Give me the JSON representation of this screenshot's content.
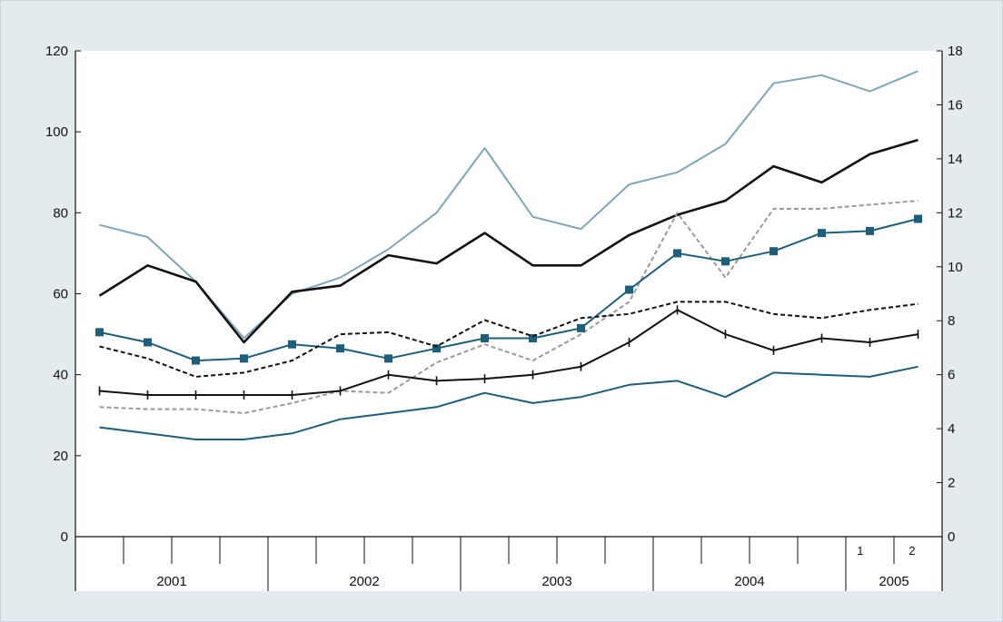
{
  "colors": {
    "background": "#e4ebef",
    "plot_area": "#ffffff",
    "teal": "#1d5f7a",
    "light_blue": "#7fa6b8",
    "black": "#111111",
    "grey_dashed": "#9a9a9a"
  },
  "chart_data": {
    "type": "line",
    "x_axis": {
      "years": [
        "2001",
        "2002",
        "2003",
        "2004",
        "2005"
      ],
      "quarter_marks_2005": [
        "1",
        "2"
      ],
      "x": [
        "2001Q1",
        "2001Q2",
        "2001Q3",
        "2001Q4",
        "2002Q1",
        "2002Q2",
        "2002Q3",
        "2002Q4",
        "2003Q1",
        "2003Q2",
        "2003Q3",
        "2003Q4",
        "2004Q1",
        "2004Q2",
        "2004Q3",
        "2004Q4",
        "2005M1",
        "2005M2"
      ]
    },
    "y_left": {
      "ticks": [
        "0",
        "20",
        "40",
        "60",
        "80",
        "100",
        "120"
      ],
      "ylim": [
        0,
        120
      ]
    },
    "y_right": {
      "ticks": [
        "0",
        "2",
        "4",
        "6",
        "8",
        "10",
        "12",
        "14",
        "16",
        "18"
      ],
      "ylim": [
        0,
        18
      ]
    },
    "grid": false,
    "legend": "none",
    "series": [
      {
        "axis": "left",
        "style": "light-blue-solid",
        "color": "#7fa6b8",
        "x": [
          0.5,
          1.5,
          2.5,
          3.5,
          4.5,
          5.5,
          6.5,
          7.5,
          8.5,
          9.5,
          10.5,
          11.5,
          12.5,
          13.5,
          14.5,
          15.5,
          16.5,
          17.5
        ],
        "values": [
          77,
          74,
          63,
          49,
          60,
          64,
          71,
          80,
          96,
          79,
          76,
          87,
          90,
          97,
          112,
          114,
          110,
          115
        ]
      },
      {
        "axis": "left",
        "style": "black-solid",
        "color": "#111111",
        "x": [
          0.5,
          1.5,
          2.5,
          3.5,
          4.5,
          5.5,
          6.5,
          7.5,
          8.5,
          9.5,
          10.5,
          11.5,
          12.5,
          13.5,
          14.5,
          15.5,
          16.5,
          17.5
        ],
        "values": [
          59.5,
          67,
          63,
          48,
          60.5,
          62,
          69.5,
          67.5,
          75,
          67,
          67,
          74.5,
          79.5,
          83,
          91.5,
          87.5,
          94.5,
          98
        ]
      },
      {
        "axis": "left",
        "style": "grey-dashed",
        "color": "#9a9a9a",
        "x": [
          0.5,
          1.5,
          2.5,
          3.5,
          4.5,
          5.5,
          6.5,
          7.5,
          8.5,
          9.5,
          10.5,
          11.5,
          12.5,
          13.5,
          14.5,
          15.5,
          16.5,
          17.5
        ],
        "values": [
          32,
          31.5,
          31.5,
          30.5,
          33,
          36,
          35.5,
          43,
          47.5,
          43.5,
          50,
          58,
          80,
          64,
          81,
          81,
          82,
          83
        ]
      },
      {
        "axis": "left",
        "style": "teal-square-markers",
        "color": "#1d5f7a",
        "x": [
          0.5,
          1.5,
          2.5,
          3.5,
          4.5,
          5.5,
          6.5,
          7.5,
          8.5,
          9.5,
          10.5,
          11.5,
          12.5,
          13.5,
          14.5,
          15.5,
          16.5,
          17.5
        ],
        "values": [
          50.5,
          48,
          43.5,
          44,
          47.5,
          46.5,
          44,
          46.5,
          49,
          49,
          51.5,
          61,
          70,
          68,
          70.5,
          75,
          75.5,
          78.5
        ]
      },
      {
        "axis": "left",
        "style": "black-dashed",
        "color": "#111111",
        "x": [
          0.5,
          1.5,
          2.5,
          3.5,
          4.5,
          5.5,
          6.5,
          7.5,
          8.5,
          9.5,
          10.5,
          11.5,
          12.5,
          13.5,
          14.5,
          15.5,
          16.5,
          17.5
        ],
        "values": [
          47,
          44,
          39.5,
          40.5,
          43.5,
          50,
          50.5,
          47,
          53.5,
          49.5,
          54,
          55,
          58,
          58,
          55,
          54,
          56,
          57.5
        ]
      },
      {
        "axis": "left",
        "style": "black-tick-markers",
        "color": "#111111",
        "x": [
          0.5,
          1.5,
          2.5,
          3.5,
          4.5,
          5.5,
          6.5,
          7.5,
          8.5,
          9.5,
          10.5,
          11.5,
          12.5,
          13.5,
          14.5,
          15.5,
          16.5,
          17.5
        ],
        "values": [
          36,
          35,
          35,
          35,
          35,
          36,
          40,
          38.5,
          39,
          40,
          42,
          48,
          56,
          50,
          46,
          49,
          48,
          50
        ]
      },
      {
        "axis": "left",
        "style": "teal-solid",
        "color": "#1d5f7a",
        "x": [
          0.5,
          1.5,
          2.5,
          3.5,
          4.5,
          5.5,
          6.5,
          7.5,
          8.5,
          9.5,
          10.5,
          11.5,
          12.5,
          13.5,
          14.5,
          15.5,
          16.5,
          17.5
        ],
        "values": [
          27,
          25.5,
          24,
          24,
          25.5,
          29,
          30.5,
          32,
          35.5,
          33,
          34.5,
          37.5,
          38.5,
          34.5,
          40.5,
          40,
          39.5,
          42
        ]
      }
    ]
  }
}
